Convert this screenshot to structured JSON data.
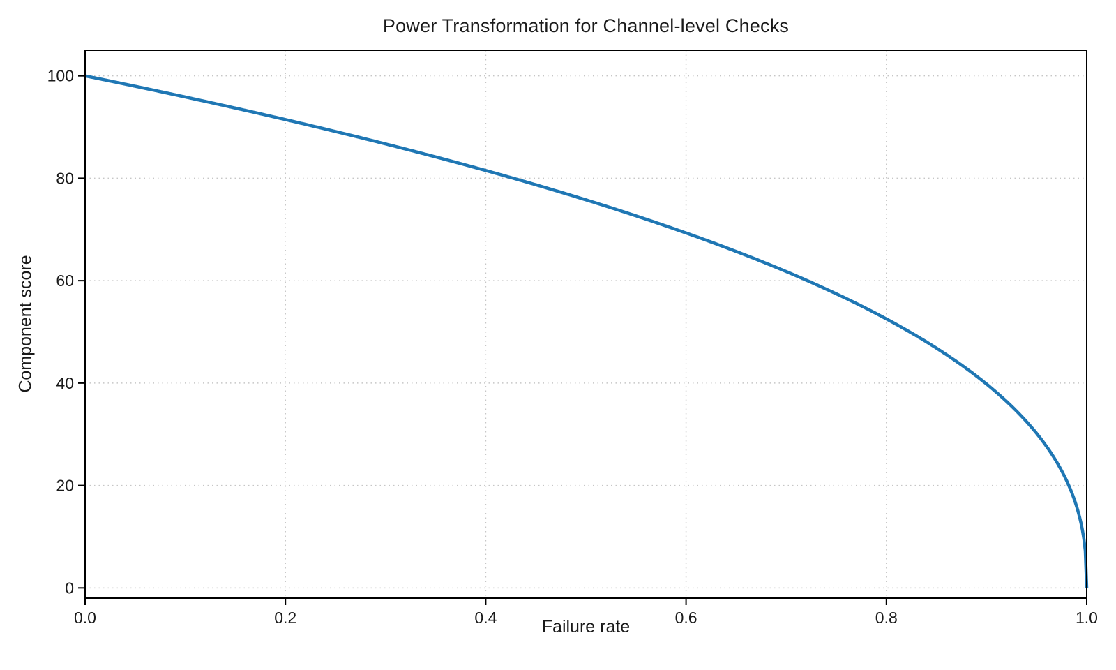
{
  "page": {
    "background": "#ffffff"
  },
  "chart_data": {
    "type": "line",
    "title": "Power Transformation for Channel-level Checks",
    "xlabel": "Failure rate",
    "ylabel": "Component score",
    "xlim": [
      0.0,
      1.0
    ],
    "ylim": [
      -2,
      105
    ],
    "xticks": [
      0.0,
      0.2,
      0.4,
      0.6,
      0.8,
      1.0
    ],
    "xtick_labels": [
      "0.0",
      "0.2",
      "0.4",
      "0.6",
      "0.8",
      "1.0"
    ],
    "yticks": [
      0,
      20,
      40,
      60,
      80,
      100
    ],
    "ytick_labels": [
      "0",
      "20",
      "40",
      "60",
      "80",
      "100"
    ],
    "grid": {
      "visible": true,
      "style": "dotted",
      "color": "#c6c6c6"
    },
    "legend": {
      "visible": false
    },
    "axis_color": "#000000",
    "text_color": "#1a1a1a",
    "series": [
      {
        "name": "Component score",
        "color": "#1f77b4",
        "line_width": 4.5,
        "function": "y = 100 * (1 - x)^0.4",
        "scale": 100,
        "exponent": 0.4,
        "x": [
          0.0,
          0.05,
          0.1,
          0.15,
          0.2,
          0.25,
          0.3,
          0.35,
          0.4,
          0.45,
          0.5,
          0.55,
          0.6,
          0.65,
          0.7,
          0.75,
          0.8,
          0.85,
          0.9,
          0.92,
          0.94,
          0.96,
          0.98,
          0.99,
          0.995,
          0.999,
          1.0
        ],
        "y": [
          100.0,
          97.97,
          95.87,
          93.71,
          91.46,
          89.13,
          86.7,
          84.17,
          81.52,
          78.73,
          75.79,
          72.66,
          69.31,
          65.71,
          61.78,
          57.43,
          52.53,
          46.82,
          39.81,
          36.41,
          32.45,
          27.59,
          20.91,
          15.85,
          12.01,
          6.31,
          0.0
        ]
      }
    ]
  }
}
